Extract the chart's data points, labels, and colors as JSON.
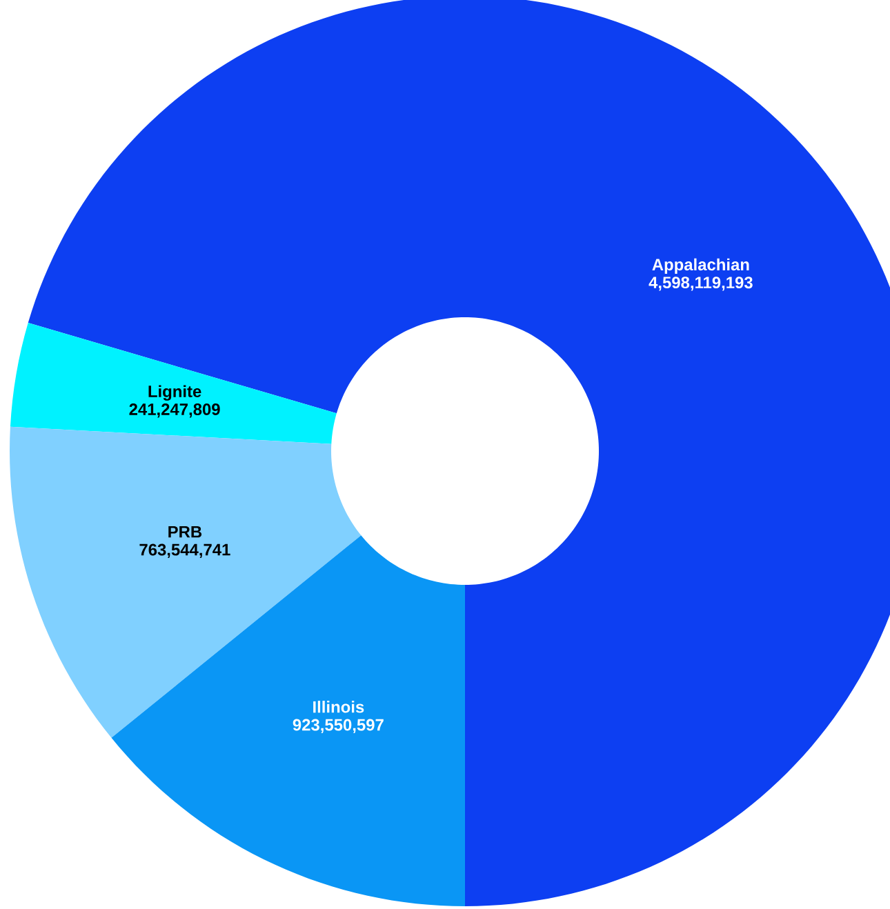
{
  "chart_data": {
    "type": "donut",
    "categories": [
      "Appalachian",
      "Lignite",
      "PRB",
      "Illinois"
    ],
    "values": [
      4598119193,
      241247809,
      763544741,
      923550597
    ],
    "value_labels": [
      "4,598,119,193",
      "241,247,809",
      "763,544,741",
      "923,550,597"
    ],
    "colors": [
      "#0d3ff2",
      "#00f2ff",
      "#80d0ff",
      "#0a96f5"
    ]
  }
}
